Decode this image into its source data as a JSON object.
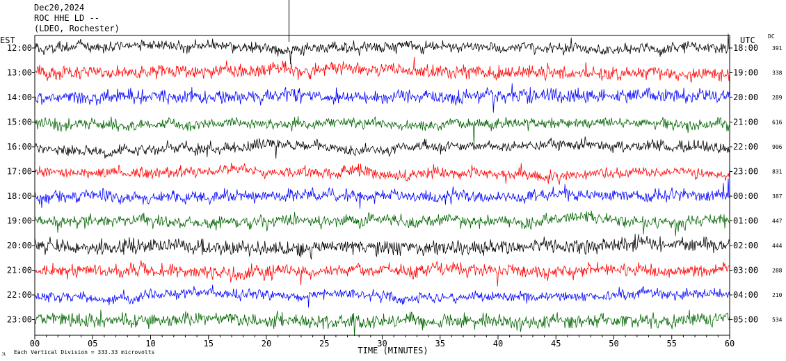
{
  "header": {
    "line1": "Dec20,2024",
    "line2": "ROC HHE LD --",
    "line3": "(LDEO, Rochester)"
  },
  "left_zone": "EST",
  "right_zone": "UTC",
  "dc_label": "DC",
  "scale_note": "Each Vertical Division =  333.33 microvolts",
  "corner_mark": "JL",
  "colors": {
    "trace_cycle": [
      "#000000",
      "#ff0000",
      "#0000ff",
      "#006400"
    ]
  },
  "chart_data": {
    "type": "line",
    "title": "",
    "xlabel": "TIME (MINUTES)",
    "ylabel": "",
    "x_range": [
      0,
      60
    ],
    "x_ticks": [
      "00",
      "05",
      "10",
      "15",
      "20",
      "25",
      "30",
      "35",
      "40",
      "45",
      "50",
      "55",
      "60"
    ],
    "grid": false,
    "rows": [
      {
        "est": "12:00",
        "utc": "18:00",
        "dc": "391",
        "color": "#000000"
      },
      {
        "est": "13:00",
        "utc": "19:00",
        "dc": "338",
        "color": "#ff0000"
      },
      {
        "est": "14:00",
        "utc": "20:00",
        "dc": "289",
        "color": "#0000ff"
      },
      {
        "est": "15:00",
        "utc": "21:00",
        "dc": "616",
        "color": "#006400"
      },
      {
        "est": "16:00",
        "utc": "22:00",
        "dc": "906",
        "color": "#000000"
      },
      {
        "est": "17:00",
        "utc": "23:00",
        "dc": "831",
        "color": "#ff0000"
      },
      {
        "est": "18:00",
        "utc": "00:00",
        "dc": "387",
        "color": "#0000ff"
      },
      {
        "est": "19:00",
        "utc": "01:00",
        "dc": "447",
        "color": "#006400"
      },
      {
        "est": "20:00",
        "utc": "02:00",
        "dc": "444",
        "color": "#000000"
      },
      {
        "est": "21:00",
        "utc": "03:00",
        "dc": "288",
        "color": "#ff0000"
      },
      {
        "est": "22:00",
        "utc": "04:00",
        "dc": "210",
        "color": "#0000ff"
      },
      {
        "est": "23:00",
        "utc": "05:00",
        "dc": "534",
        "color": "#006400"
      }
    ]
  }
}
